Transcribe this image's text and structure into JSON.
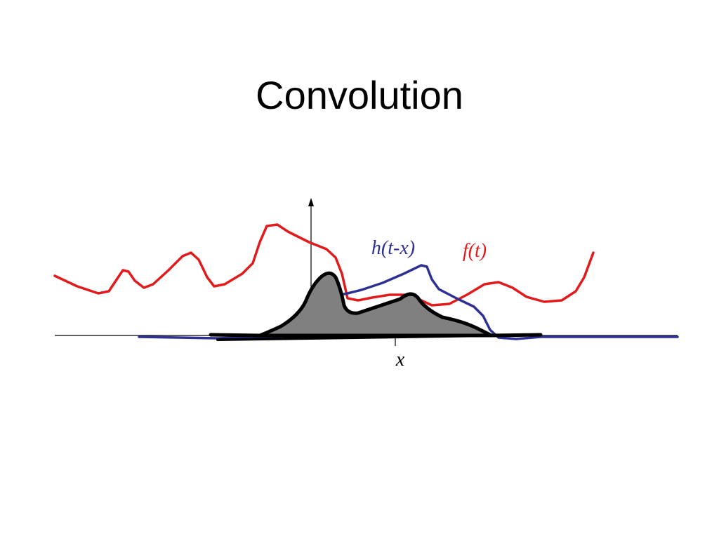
{
  "title": "Convolution",
  "labels": {
    "h": "h(t-x)",
    "f": "f(t)",
    "x": "x"
  }
}
